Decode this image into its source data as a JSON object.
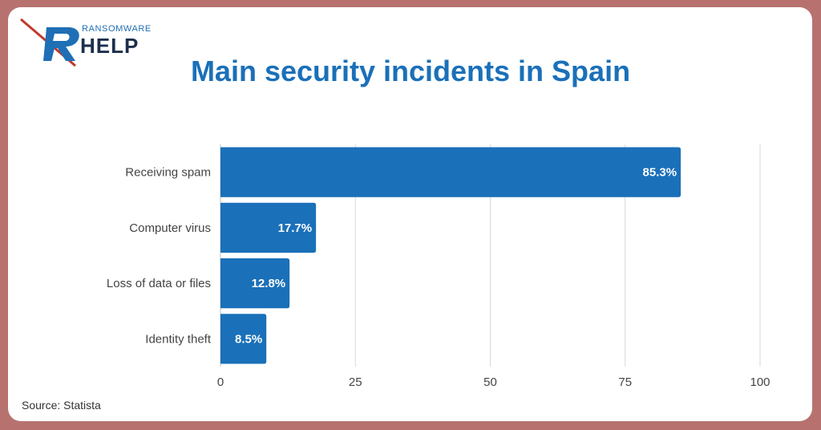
{
  "logo": {
    "top_text": "RANSOMWARE",
    "main_text": "HELP"
  },
  "title": "Main security incidents in Spain",
  "source": "Source: Statista",
  "colors": {
    "frame": "#b7726f",
    "bar": "#1a70b9",
    "title": "#1a70b9",
    "grid": "#d9d9d9",
    "logo_red": "#c0392b",
    "logo_dark": "#1c2f4d"
  },
  "chart_data": {
    "type": "bar",
    "orientation": "horizontal",
    "categories": [
      "Receiving spam",
      "Computer virus",
      "Loss of data or files",
      "Identity theft"
    ],
    "values": [
      85.3,
      17.7,
      12.8,
      8.5
    ],
    "value_labels": [
      "85.3%",
      "17.7%",
      "12.8%",
      "8.5%"
    ],
    "xlim": [
      0,
      100
    ],
    "xticks": [
      0,
      25,
      50,
      75,
      100
    ],
    "grid": true,
    "legend": "none"
  }
}
